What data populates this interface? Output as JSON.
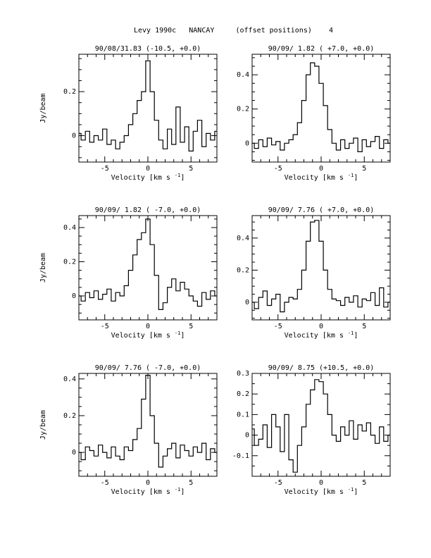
{
  "page_title": "Levy 1990c   NANCAY     (offset positions)    4",
  "chart_data": [
    {
      "type": "line",
      "title": "90/08/31.83  (-10.5, +0.0)",
      "xlabel": "Velocity [km s^-1]",
      "ylabel": "Jy/beam",
      "xlim": [
        -8,
        8
      ],
      "ylim": [
        -0.12,
        0.37
      ],
      "yticks": [
        0,
        0.2
      ],
      "ytick_labels": [
        "0",
        "0.2"
      ],
      "xticks": [
        -5,
        0,
        5
      ],
      "xtick_labels": [
        "-5",
        "0",
        "5"
      ],
      "x": [
        -8,
        -7.5,
        -7,
        -6.5,
        -6,
        -5.5,
        -5,
        -4.5,
        -4,
        -3.5,
        -3,
        -2.5,
        -2,
        -1.5,
        -1,
        -0.5,
        0,
        0.5,
        1,
        1.5,
        2,
        2.5,
        3,
        3.5,
        4,
        4.5,
        5,
        5.5,
        6,
        6.5,
        7,
        7.5,
        8
      ],
      "y": [
        0.01,
        -0.02,
        0.02,
        -0.03,
        0.0,
        -0.02,
        0.03,
        -0.04,
        -0.02,
        -0.06,
        -0.03,
        0.0,
        0.05,
        0.1,
        0.16,
        0.2,
        0.34,
        0.2,
        0.07,
        -0.02,
        -0.06,
        0.03,
        -0.04,
        0.13,
        -0.03,
        0.04,
        -0.07,
        0.02,
        0.07,
        -0.05,
        0.01,
        -0.02,
        0.02
      ]
    },
    {
      "type": "line",
      "title": "90/09/ 1.82  ( +7.0, +0.0)",
      "xlabel": "Velocity [km s^-1]",
      "ylabel": "",
      "xlim": [
        -8,
        8
      ],
      "ylim": [
        -0.11,
        0.52
      ],
      "yticks": [
        0,
        0.2,
        0.4
      ],
      "ytick_labels": [
        "0",
        "0.2",
        "0.4"
      ],
      "xticks": [
        -5,
        0,
        5
      ],
      "xtick_labels": [
        "-5",
        "0",
        "5"
      ],
      "x": [
        -8,
        -7.5,
        -7,
        -6.5,
        -6,
        -5.5,
        -5,
        -4.5,
        -4,
        -3.5,
        -3,
        -2.5,
        -2,
        -1.5,
        -1,
        -0.5,
        0,
        0.5,
        1,
        1.5,
        2,
        2.5,
        3,
        3.5,
        4,
        4.5,
        5,
        5.5,
        6,
        6.5,
        7,
        7.5,
        8
      ],
      "y": [
        0.0,
        -0.03,
        0.02,
        -0.02,
        0.03,
        -0.01,
        0.01,
        -0.04,
        0.0,
        0.02,
        0.05,
        0.12,
        0.25,
        0.4,
        0.47,
        0.45,
        0.35,
        0.22,
        0.08,
        0.0,
        -0.04,
        0.02,
        -0.03,
        0.0,
        0.03,
        -0.05,
        0.02,
        -0.02,
        0.01,
        0.04,
        -0.03,
        0.02,
        0.0
      ]
    },
    {
      "type": "line",
      "title": "90/09/ 1.82  ( -7.0, +0.0)",
      "xlabel": "Velocity [km s^-1]",
      "ylabel": "Jy/beam",
      "xlim": [
        -8,
        8
      ],
      "ylim": [
        -0.14,
        0.47
      ],
      "yticks": [
        0,
        0.2,
        0.4
      ],
      "ytick_labels": [
        "0",
        "0.2",
        "0.4"
      ],
      "xticks": [
        -5,
        0,
        5
      ],
      "xtick_labels": [
        "-5",
        "0",
        "5"
      ],
      "x": [
        -8,
        -7.5,
        -7,
        -6.5,
        -6,
        -5.5,
        -5,
        -4.5,
        -4,
        -3.5,
        -3,
        -2.5,
        -2,
        -1.5,
        -1,
        -0.5,
        0,
        0.5,
        1,
        1.5,
        2,
        2.5,
        3,
        3.5,
        4,
        4.5,
        5,
        5.5,
        6,
        6.5,
        7,
        7.5,
        8
      ],
      "y": [
        0.0,
        -0.03,
        0.02,
        -0.01,
        0.03,
        -0.02,
        0.01,
        0.04,
        -0.03,
        0.02,
        0.0,
        0.06,
        0.15,
        0.24,
        0.33,
        0.37,
        0.45,
        0.3,
        0.12,
        -0.08,
        -0.04,
        0.05,
        0.1,
        0.03,
        0.08,
        0.04,
        0.0,
        -0.03,
        -0.06,
        0.02,
        -0.02,
        0.03,
        0.0
      ]
    },
    {
      "type": "line",
      "title": "90/09/ 7.76  ( +7.0, +0.0)",
      "xlabel": "Velocity [km s^-1]",
      "ylabel": "",
      "xlim": [
        -8,
        8
      ],
      "ylim": [
        -0.11,
        0.54
      ],
      "yticks": [
        0,
        0.2,
        0.4
      ],
      "ytick_labels": [
        "0",
        "0.2",
        "0.4"
      ],
      "xticks": [
        -5,
        0,
        5
      ],
      "xtick_labels": [
        "-5",
        "0",
        "5"
      ],
      "x": [
        -8,
        -7.5,
        -7,
        -6.5,
        -6,
        -5.5,
        -5,
        -4.5,
        -4,
        -3.5,
        -3,
        -2.5,
        -2,
        -1.5,
        -1,
        -0.5,
        0,
        0.5,
        1,
        1.5,
        2,
        2.5,
        3,
        3.5,
        4,
        4.5,
        5,
        5.5,
        6,
        6.5,
        7,
        7.5,
        8
      ],
      "y": [
        0.0,
        -0.04,
        0.03,
        0.07,
        -0.02,
        0.02,
        0.05,
        -0.06,
        0.0,
        0.03,
        0.02,
        0.08,
        0.2,
        0.38,
        0.5,
        0.51,
        0.38,
        0.2,
        0.08,
        0.02,
        0.01,
        -0.02,
        0.03,
        0.0,
        0.04,
        -0.03,
        0.02,
        0.01,
        0.06,
        -0.02,
        0.09,
        -0.03,
        0.0
      ]
    },
    {
      "type": "line",
      "title": "90/09/ 7.76  ( -7.0, +0.0)",
      "xlabel": "Velocity [km s^-1]",
      "ylabel": "Jy/beam",
      "xlim": [
        -8,
        8
      ],
      "ylim": [
        -0.13,
        0.43
      ],
      "yticks": [
        0,
        0.2,
        0.4
      ],
      "ytick_labels": [
        "0",
        "0.2",
        "0.4"
      ],
      "xticks": [
        -5,
        0,
        5
      ],
      "xtick_labels": [
        "-5",
        "0",
        "5"
      ],
      "x": [
        -8,
        -7.5,
        -7,
        -6.5,
        -6,
        -5.5,
        -5,
        -4.5,
        -4,
        -3.5,
        -3,
        -2.5,
        -2,
        -1.5,
        -1,
        -0.5,
        0,
        0.5,
        1,
        1.5,
        2,
        2.5,
        3,
        3.5,
        4,
        4.5,
        5,
        5.5,
        6,
        6.5,
        7,
        7.5,
        8
      ],
      "y": [
        0.0,
        -0.04,
        0.03,
        0.01,
        -0.02,
        0.04,
        0.0,
        -0.03,
        0.03,
        -0.02,
        -0.04,
        0.03,
        0.01,
        0.07,
        0.13,
        0.29,
        0.42,
        0.2,
        0.05,
        -0.08,
        -0.02,
        0.02,
        0.05,
        -0.03,
        0.04,
        0.01,
        -0.02,
        0.03,
        0.0,
        0.05,
        -0.04,
        0.02,
        0.0
      ]
    },
    {
      "type": "line",
      "title": "90/09/ 8.75  (+10.5, +0.0)",
      "xlabel": "Velocity [km s^-1]",
      "ylabel": "",
      "xlim": [
        -8,
        8
      ],
      "ylim": [
        -0.2,
        0.3
      ],
      "yticks": [
        -0.1,
        0,
        0.1,
        0.2,
        0.3
      ],
      "ytick_labels": [
        "-0.1",
        "0",
        "0.1",
        "0.2",
        "0.3"
      ],
      "xticks": [
        -5,
        0,
        5
      ],
      "xtick_labels": [
        "-5",
        "0",
        "5"
      ],
      "x": [
        -8,
        -7.5,
        -7,
        -6.5,
        -6,
        -5.5,
        -5,
        -4.5,
        -4,
        -3.5,
        -3,
        -2.5,
        -2,
        -1.5,
        -1,
        -0.5,
        0,
        0.5,
        1,
        1.5,
        2,
        2.5,
        3,
        3.5,
        4,
        4.5,
        5,
        5.5,
        6,
        6.5,
        7,
        7.5,
        8
      ],
      "y": [
        0.03,
        -0.05,
        -0.02,
        0.05,
        -0.06,
        0.1,
        0.04,
        -0.08,
        0.1,
        -0.12,
        -0.18,
        -0.05,
        0.04,
        0.15,
        0.22,
        0.27,
        0.26,
        0.2,
        0.1,
        0.0,
        -0.03,
        0.04,
        0.0,
        0.07,
        -0.02,
        0.05,
        0.02,
        0.06,
        0.0,
        -0.04,
        0.04,
        -0.03,
        0.0
      ]
    }
  ]
}
